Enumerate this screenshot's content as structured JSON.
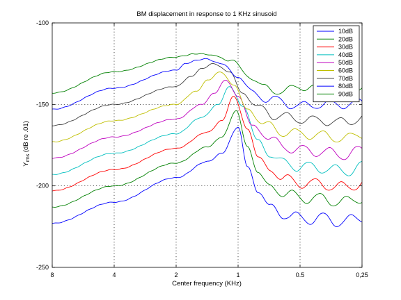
{
  "chart_data": {
    "type": "line",
    "title": "BM displacement in response to 1 KHz sinusoid",
    "xlabel": "Center frequency (KHz)",
    "ylabel_main": "Y",
    "ylabel_sub": "rms",
    "ylabel_rest": " (dB re .01)",
    "x_scale": "log",
    "x_direction": "decreasing",
    "xlim": [
      8,
      0.25
    ],
    "ylim": [
      -250,
      -100
    ],
    "xticks": [
      8,
      4,
      2,
      1,
      0.5,
      0.25
    ],
    "xtick_labels": [
      "8",
      "4",
      "2",
      "1",
      "0.5",
      "0,25"
    ],
    "yticks": [
      -100,
      -150,
      -200,
      -250
    ],
    "ytick_labels": [
      "-100",
      "-150",
      "-200",
      "-250"
    ],
    "grid": true,
    "legend_position": "top-right",
    "peak_frequency_khz": [
      1.0,
      1.02,
      1.05,
      1.1,
      1.15,
      1.22,
      1.32,
      1.45,
      1.65
    ],
    "series": [
      {
        "name": "10dB",
        "color": "#0000ff",
        "x": [
          8,
          4,
          2,
          1.4,
          1.2,
          1.0,
          0.9,
          0.8,
          0.7,
          0.6,
          0.5,
          0.4,
          0.3,
          0.25
        ],
        "y": [
          -223,
          -210,
          -195,
          -185,
          -180,
          -164,
          -188,
          -204,
          -212,
          -218,
          -220,
          -220,
          -222,
          -219
        ]
      },
      {
        "name": "20dB",
        "color": "#008000",
        "x": [
          8,
          4,
          2,
          1.4,
          1.2,
          1.02,
          0.9,
          0.8,
          0.7,
          0.6,
          0.5,
          0.4,
          0.3,
          0.25
        ],
        "y": [
          -213,
          -200,
          -186,
          -176,
          -170,
          -154,
          -176,
          -192,
          -200,
          -205,
          -207,
          -208,
          -210,
          -207
        ]
      },
      {
        "name": "30dB",
        "color": "#ff0000",
        "x": [
          8,
          4,
          2,
          1.4,
          1.2,
          1.05,
          0.9,
          0.8,
          0.7,
          0.6,
          0.5,
          0.4,
          0.3,
          0.25
        ],
        "y": [
          -203,
          -190,
          -177,
          -167,
          -160,
          -145,
          -165,
          -182,
          -190,
          -196,
          -198,
          -199,
          -201,
          -198
        ]
      },
      {
        "name": "40dB",
        "color": "#00bfbf",
        "x": [
          8,
          4,
          2,
          1.5,
          1.25,
          1.1,
          0.95,
          0.8,
          0.7,
          0.6,
          0.5,
          0.4,
          0.3,
          0.25
        ],
        "y": [
          -193,
          -180,
          -168,
          -158,
          -150,
          -139,
          -151,
          -172,
          -181,
          -186,
          -188,
          -189,
          -191,
          -188
        ]
      },
      {
        "name": "50dB",
        "color": "#bf00bf",
        "x": [
          8,
          4,
          2,
          1.5,
          1.3,
          1.15,
          1.0,
          0.85,
          0.7,
          0.6,
          0.5,
          0.4,
          0.3,
          0.25
        ],
        "y": [
          -183,
          -170,
          -159,
          -150,
          -143,
          -135,
          -145,
          -163,
          -171,
          -176,
          -178,
          -179,
          -181,
          -178
        ]
      },
      {
        "name": "60dB",
        "color": "#bfbf00",
        "x": [
          8,
          4,
          2,
          1.6,
          1.4,
          1.22,
          1.05,
          0.9,
          0.75,
          0.6,
          0.5,
          0.4,
          0.3,
          0.25
        ],
        "y": [
          -173,
          -160,
          -150,
          -142,
          -135,
          -130,
          -138,
          -153,
          -162,
          -167,
          -168,
          -169,
          -171,
          -168
        ]
      },
      {
        "name": "70dB",
        "color": "#404040",
        "x": [
          8,
          4,
          2,
          1.7,
          1.5,
          1.32,
          1.1,
          0.95,
          0.8,
          0.65,
          0.5,
          0.4,
          0.3,
          0.25
        ],
        "y": [
          -163,
          -150,
          -139,
          -133,
          -128,
          -125,
          -130,
          -143,
          -152,
          -157,
          -159,
          -160,
          -161,
          -158
        ]
      },
      {
        "name": "80dB",
        "color": "#0000ff",
        "x": [
          8,
          4,
          2,
          1.8,
          1.6,
          1.45,
          1.2,
          1.0,
          0.85,
          0.7,
          0.5,
          0.4,
          0.3,
          0.25
        ],
        "y": [
          -153,
          -140,
          -129,
          -125,
          -123,
          -122,
          -125,
          -133,
          -143,
          -147,
          -151,
          -150,
          -150,
          -149
        ]
      },
      {
        "name": "90dB",
        "color": "#008000",
        "x": [
          8,
          4,
          2,
          1.8,
          1.65,
          1.5,
          1.3,
          1.1,
          0.9,
          0.75,
          0.6,
          0.5,
          0.4,
          0.3,
          0.25
        ],
        "y": [
          -143,
          -130,
          -121,
          -120,
          -119,
          -119,
          -120,
          -123,
          -131,
          -140,
          -142,
          -139,
          -140,
          -140,
          -139
        ]
      }
    ]
  }
}
